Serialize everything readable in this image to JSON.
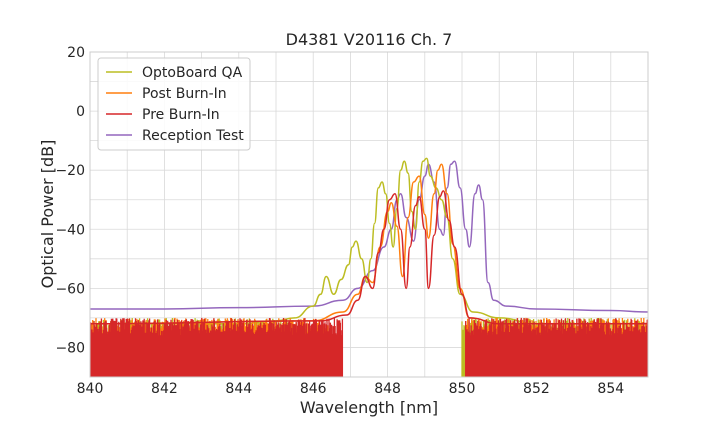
{
  "chart_data": {
    "type": "line",
    "title": "D4381 V20116 Ch. 7",
    "xlabel": "Wavelength [nm]",
    "ylabel": "Optical Power [dB]",
    "xlim": [
      840,
      855
    ],
    "ylim": [
      -90,
      20
    ],
    "xticks": [
      840,
      842,
      844,
      846,
      848,
      850,
      852,
      854
    ],
    "yticks": [
      -80,
      -60,
      -40,
      -20,
      0,
      20
    ],
    "grid": true,
    "legend_position": "top-left",
    "series": [
      {
        "name": "OptoBoard QA",
        "color": "#bcbd22",
        "noise_floor": {
          "x_ranges": [
            [
              840,
              845.3
            ],
            [
              850.0,
              855
            ]
          ],
          "level": -90
        },
        "points": [
          [
            840,
            -72
          ],
          [
            842,
            -72
          ],
          [
            844,
            -72
          ],
          [
            845.0,
            -71
          ],
          [
            845.5,
            -70
          ],
          [
            846.0,
            -66
          ],
          [
            846.2,
            -62
          ],
          [
            846.35,
            -56
          ],
          [
            846.55,
            -62
          ],
          [
            846.75,
            -57
          ],
          [
            846.95,
            -52
          ],
          [
            847.05,
            -46
          ],
          [
            847.15,
            -44
          ],
          [
            847.3,
            -50
          ],
          [
            847.45,
            -58
          ],
          [
            847.55,
            -50
          ],
          [
            847.65,
            -38
          ],
          [
            847.75,
            -26
          ],
          [
            847.85,
            -24
          ],
          [
            847.95,
            -28
          ],
          [
            848.05,
            -38
          ],
          [
            848.15,
            -46
          ],
          [
            848.25,
            -33
          ],
          [
            848.35,
            -20
          ],
          [
            848.45,
            -17
          ],
          [
            848.55,
            -21
          ],
          [
            848.65,
            -34
          ],
          [
            848.75,
            -40
          ],
          [
            848.85,
            -24
          ],
          [
            848.95,
            -17
          ],
          [
            849.05,
            -16
          ],
          [
            849.15,
            -22
          ],
          [
            849.3,
            -26
          ],
          [
            849.45,
            -30
          ],
          [
            849.6,
            -36
          ],
          [
            849.75,
            -50
          ],
          [
            849.95,
            -62
          ],
          [
            850.3,
            -68
          ],
          [
            851,
            -70
          ],
          [
            852,
            -72
          ],
          [
            855,
            -72
          ]
        ]
      },
      {
        "name": "Post Burn-In",
        "color": "#ff7f0e",
        "noise_floor": {
          "x_ranges": [
            [
              840,
              846.4
            ],
            [
              850.1,
              855
            ]
          ],
          "level": -90
        },
        "points": [
          [
            840,
            -72
          ],
          [
            846.0,
            -71
          ],
          [
            846.8,
            -68
          ],
          [
            847.2,
            -62
          ],
          [
            847.4,
            -56
          ],
          [
            847.6,
            -58
          ],
          [
            847.8,
            -46
          ],
          [
            848.0,
            -34
          ],
          [
            848.1,
            -31
          ],
          [
            848.25,
            -39
          ],
          [
            848.4,
            -56
          ],
          [
            848.55,
            -36
          ],
          [
            848.7,
            -24
          ],
          [
            848.85,
            -22
          ],
          [
            849.0,
            -35
          ],
          [
            849.1,
            -43
          ],
          [
            849.25,
            -28
          ],
          [
            849.35,
            -20
          ],
          [
            849.45,
            -18
          ],
          [
            849.6,
            -28
          ],
          [
            849.75,
            -45
          ],
          [
            849.95,
            -60
          ],
          [
            850.2,
            -70
          ],
          [
            851,
            -72
          ],
          [
            855,
            -72
          ]
        ]
      },
      {
        "name": "Pre Burn-In",
        "color": "#d62728",
        "noise_floor": {
          "x_ranges": [
            [
              840,
              846.8
            ],
            [
              850.1,
              855
            ]
          ],
          "level": -90
        },
        "points": [
          [
            840,
            -72
          ],
          [
            846.2,
            -71
          ],
          [
            846.9,
            -69
          ],
          [
            847.2,
            -64
          ],
          [
            847.4,
            -56
          ],
          [
            847.6,
            -60
          ],
          [
            847.75,
            -48
          ],
          [
            847.9,
            -40
          ],
          [
            848.05,
            -30
          ],
          [
            848.2,
            -28
          ],
          [
            848.35,
            -40
          ],
          [
            848.5,
            -60
          ],
          [
            848.6,
            -46
          ],
          [
            848.75,
            -32
          ],
          [
            848.85,
            -29
          ],
          [
            849.0,
            -40
          ],
          [
            849.1,
            -60
          ],
          [
            849.25,
            -42
          ],
          [
            849.4,
            -29
          ],
          [
            849.5,
            -27
          ],
          [
            849.65,
            -37
          ],
          [
            849.8,
            -46
          ],
          [
            850.0,
            -62
          ],
          [
            850.2,
            -70
          ],
          [
            851,
            -72
          ],
          [
            855,
            -72
          ]
        ]
      },
      {
        "name": "Reception Test",
        "color": "#9467bd",
        "points": [
          [
            840,
            -67
          ],
          [
            842,
            -67
          ],
          [
            844,
            -66.5
          ],
          [
            846.0,
            -66
          ],
          [
            846.8,
            -64
          ],
          [
            847.2,
            -60
          ],
          [
            847.6,
            -54
          ],
          [
            847.9,
            -46
          ],
          [
            848.1,
            -40
          ],
          [
            848.25,
            -30
          ],
          [
            848.35,
            -28
          ],
          [
            848.5,
            -36
          ],
          [
            848.7,
            -44
          ],
          [
            848.85,
            -30
          ],
          [
            849.0,
            -22
          ],
          [
            849.1,
            -18
          ],
          [
            849.25,
            -24
          ],
          [
            849.4,
            -40
          ],
          [
            849.5,
            -42
          ],
          [
            849.6,
            -26
          ],
          [
            849.7,
            -18
          ],
          [
            849.8,
            -17
          ],
          [
            849.95,
            -26
          ],
          [
            850.1,
            -40
          ],
          [
            850.2,
            -46
          ],
          [
            850.35,
            -28
          ],
          [
            850.45,
            -25
          ],
          [
            850.55,
            -30
          ],
          [
            850.7,
            -58
          ],
          [
            850.85,
            -64
          ],
          [
            851.2,
            -66
          ],
          [
            852,
            -67
          ],
          [
            854,
            -67.5
          ],
          [
            855,
            -68
          ]
        ]
      }
    ]
  }
}
